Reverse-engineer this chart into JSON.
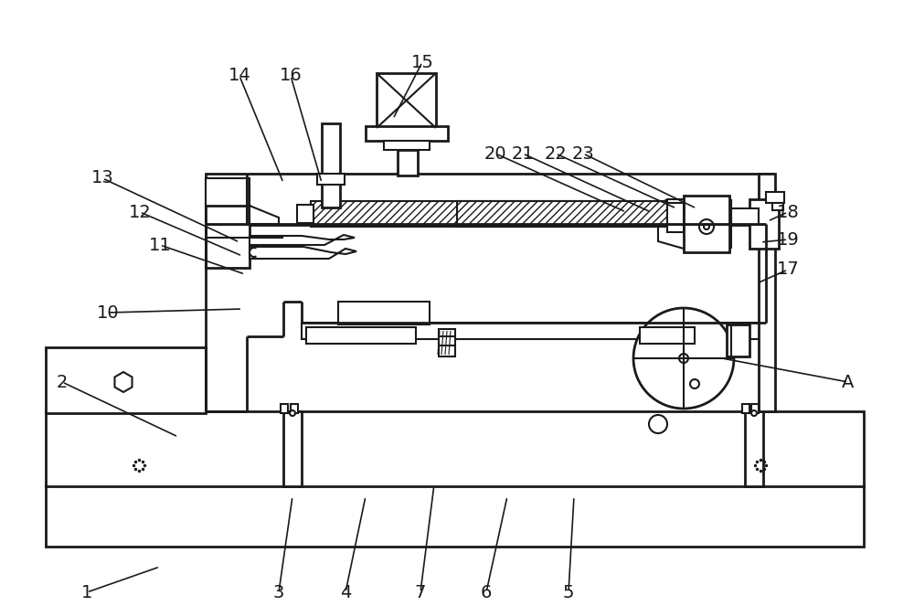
{
  "bg_color": "#ffffff",
  "line_color": "#1a1a1a",
  "annotations": [
    [
      "1",
      175,
      620,
      95,
      648
    ],
    [
      "2",
      195,
      478,
      68,
      418
    ],
    [
      "3",
      320,
      543,
      305,
      648
    ],
    [
      "4",
      400,
      543,
      378,
      648
    ],
    [
      "5",
      628,
      543,
      622,
      648
    ],
    [
      "6",
      555,
      543,
      532,
      648
    ],
    [
      "7",
      475,
      530,
      460,
      648
    ],
    [
      "10",
      265,
      338,
      118,
      342
    ],
    [
      "11",
      268,
      300,
      175,
      268
    ],
    [
      "12",
      265,
      280,
      153,
      232
    ],
    [
      "13",
      262,
      265,
      112,
      195
    ],
    [
      "14",
      310,
      200,
      262,
      83
    ],
    [
      "15",
      430,
      130,
      462,
      68
    ],
    [
      "16",
      352,
      200,
      318,
      83
    ],
    [
      "17",
      828,
      310,
      862,
      295
    ],
    [
      "18",
      840,
      242,
      862,
      232
    ],
    [
      "19",
      832,
      265,
      862,
      262
    ],
    [
      "20",
      685,
      232,
      542,
      168
    ],
    [
      "21",
      712,
      232,
      572,
      168
    ],
    [
      "22",
      740,
      228,
      608,
      168
    ],
    [
      "23",
      762,
      228,
      638,
      168
    ],
    [
      "A",
      790,
      392,
      928,
      418
    ]
  ],
  "font_size": 14
}
